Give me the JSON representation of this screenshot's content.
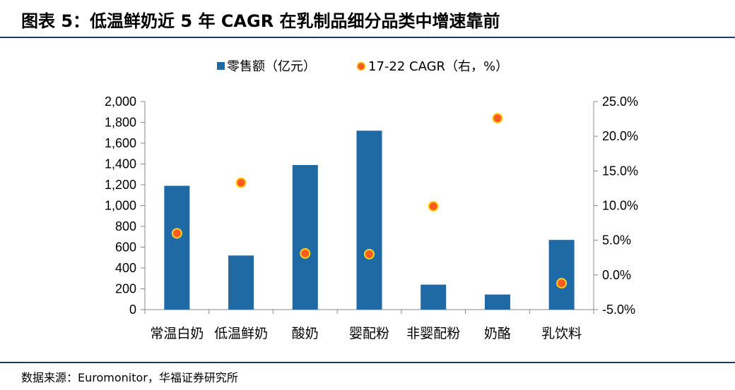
{
  "title": "图表 5：低温鲜奶近 5 年 CAGR 在乳制品细分品类中增速靠前",
  "source": "数据来源：Euromonitor，华福证券研究所",
  "colors": {
    "bar": "#1f6aa5",
    "dot_fill": "#ff5a1f",
    "dot_stroke": "#ffd21e",
    "rule": "#1f3a6b"
  },
  "chart_data": {
    "type": "bar",
    "categories": [
      "常温白奶",
      "低温鲜奶",
      "酸奶",
      "婴配粉",
      "非婴配粉",
      "奶酪",
      "乳饮料"
    ],
    "series": [
      {
        "name": "零售额（亿元）",
        "type": "bar",
        "axis": "left",
        "values": [
          1190,
          520,
          1390,
          1720,
          240,
          145,
          670
        ]
      },
      {
        "name": "17-22 CAGR（右，%）",
        "type": "scatter",
        "axis": "right",
        "values": [
          6.0,
          13.3,
          3.1,
          3.0,
          9.9,
          22.6,
          -1.2
        ]
      }
    ],
    "y_left": {
      "range": [
        0,
        2000
      ],
      "ticks": [
        "0",
        "200",
        "400",
        "600",
        "800",
        "1,000",
        "1,200",
        "1,400",
        "1,600",
        "1,800",
        "2,000"
      ]
    },
    "y_right": {
      "range": [
        -5,
        25
      ],
      "ticks": [
        "-5.0%",
        "0.0%",
        "5.0%",
        "10.0%",
        "15.0%",
        "20.0%",
        "25.0%"
      ]
    },
    "legend_position": "top-center",
    "grid": false
  }
}
